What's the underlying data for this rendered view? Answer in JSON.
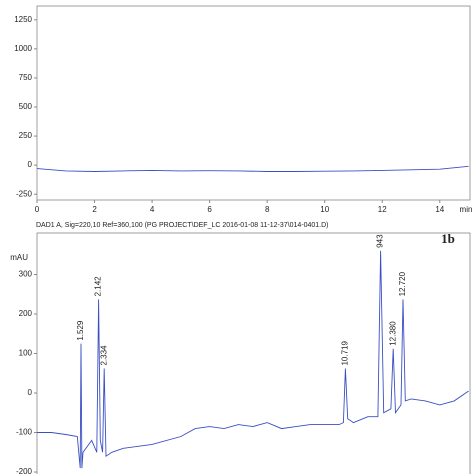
{
  "chart_data": [
    {
      "type": "line",
      "xlabel": "min",
      "xlim": [
        0,
        15.05
      ],
      "xticks": [
        0,
        2,
        4,
        6,
        8,
        10,
        12,
        14
      ],
      "ylim": [
        -300,
        1300
      ],
      "yticks": [
        -250,
        0,
        250,
        500,
        750,
        1000,
        1250
      ],
      "series": [
        {
          "color": "#3b4fc4",
          "x": [
            0,
            1,
            2,
            3,
            4,
            5,
            6,
            7,
            8,
            9,
            10,
            11,
            12,
            13,
            14,
            15
          ],
          "values": [
            -30,
            -50,
            -55,
            -50,
            -45,
            -50,
            -48,
            -50,
            -55,
            -55,
            -52,
            -50,
            -45,
            -40,
            -35,
            -10
          ]
        }
      ]
    },
    {
      "type": "line",
      "title": "DAD1 A, Sig=220,10 Ref=360,100 (PG PROJECT\\DEF_LC 2016-01-08 11-12-37\\014-0401.D)",
      "panel_label": "1b",
      "ylabel": "mAU",
      "xlim": [
        0,
        15.05
      ],
      "ylim": [
        -205,
        400
      ],
      "yticks": [
        -200,
        -100,
        0,
        100,
        200,
        300
      ],
      "series": [
        {
          "color": "#3b4fc4",
          "x": [
            0,
            0.5,
            1,
            1.4,
            1.5,
            1.529,
            1.56,
            1.6,
            1.9,
            2.08,
            2.142,
            2.2,
            2.28,
            2.334,
            2.4,
            2.6,
            3,
            4,
            5,
            5.5,
            6,
            6.5,
            7,
            7.5,
            8,
            8.5,
            9,
            9.5,
            10,
            10.5,
            10.65,
            10.719,
            10.8,
            11,
            11.5,
            11.85,
            11.943,
            12.05,
            12.3,
            12.38,
            12.46,
            12.65,
            12.72,
            12.8,
            13,
            13.5,
            14,
            14.5,
            15
          ],
          "values": [
            -100,
            -100,
            -105,
            -110,
            -190,
            125,
            -190,
            -150,
            -120,
            -150,
            237,
            -120,
            -150,
            62,
            -160,
            -150,
            -140,
            -130,
            -110,
            -90,
            -85,
            -90,
            -80,
            -85,
            -75,
            -90,
            -85,
            -80,
            -80,
            -80,
            -75,
            62,
            -65,
            -75,
            -60,
            -60,
            360,
            -50,
            -40,
            112,
            -50,
            -30,
            237,
            -20,
            -15,
            -20,
            -30,
            -20,
            5
          ]
        }
      ],
      "annotations": [
        {
          "text": "1.529",
          "x": 1.529,
          "y": 125
        },
        {
          "text": "2.142",
          "x": 2.142,
          "y": 237
        },
        {
          "text": "2.334",
          "x": 2.334,
          "y": 62
        },
        {
          "text": "10.719",
          "x": 10.719,
          "y": 62
        },
        {
          "text": "943",
          "x": 11.943,
          "y": 360
        },
        {
          "text": "12.380",
          "x": 12.38,
          "y": 112
        },
        {
          "text": "12.720",
          "x": 12.72,
          "y": 237
        }
      ]
    }
  ]
}
